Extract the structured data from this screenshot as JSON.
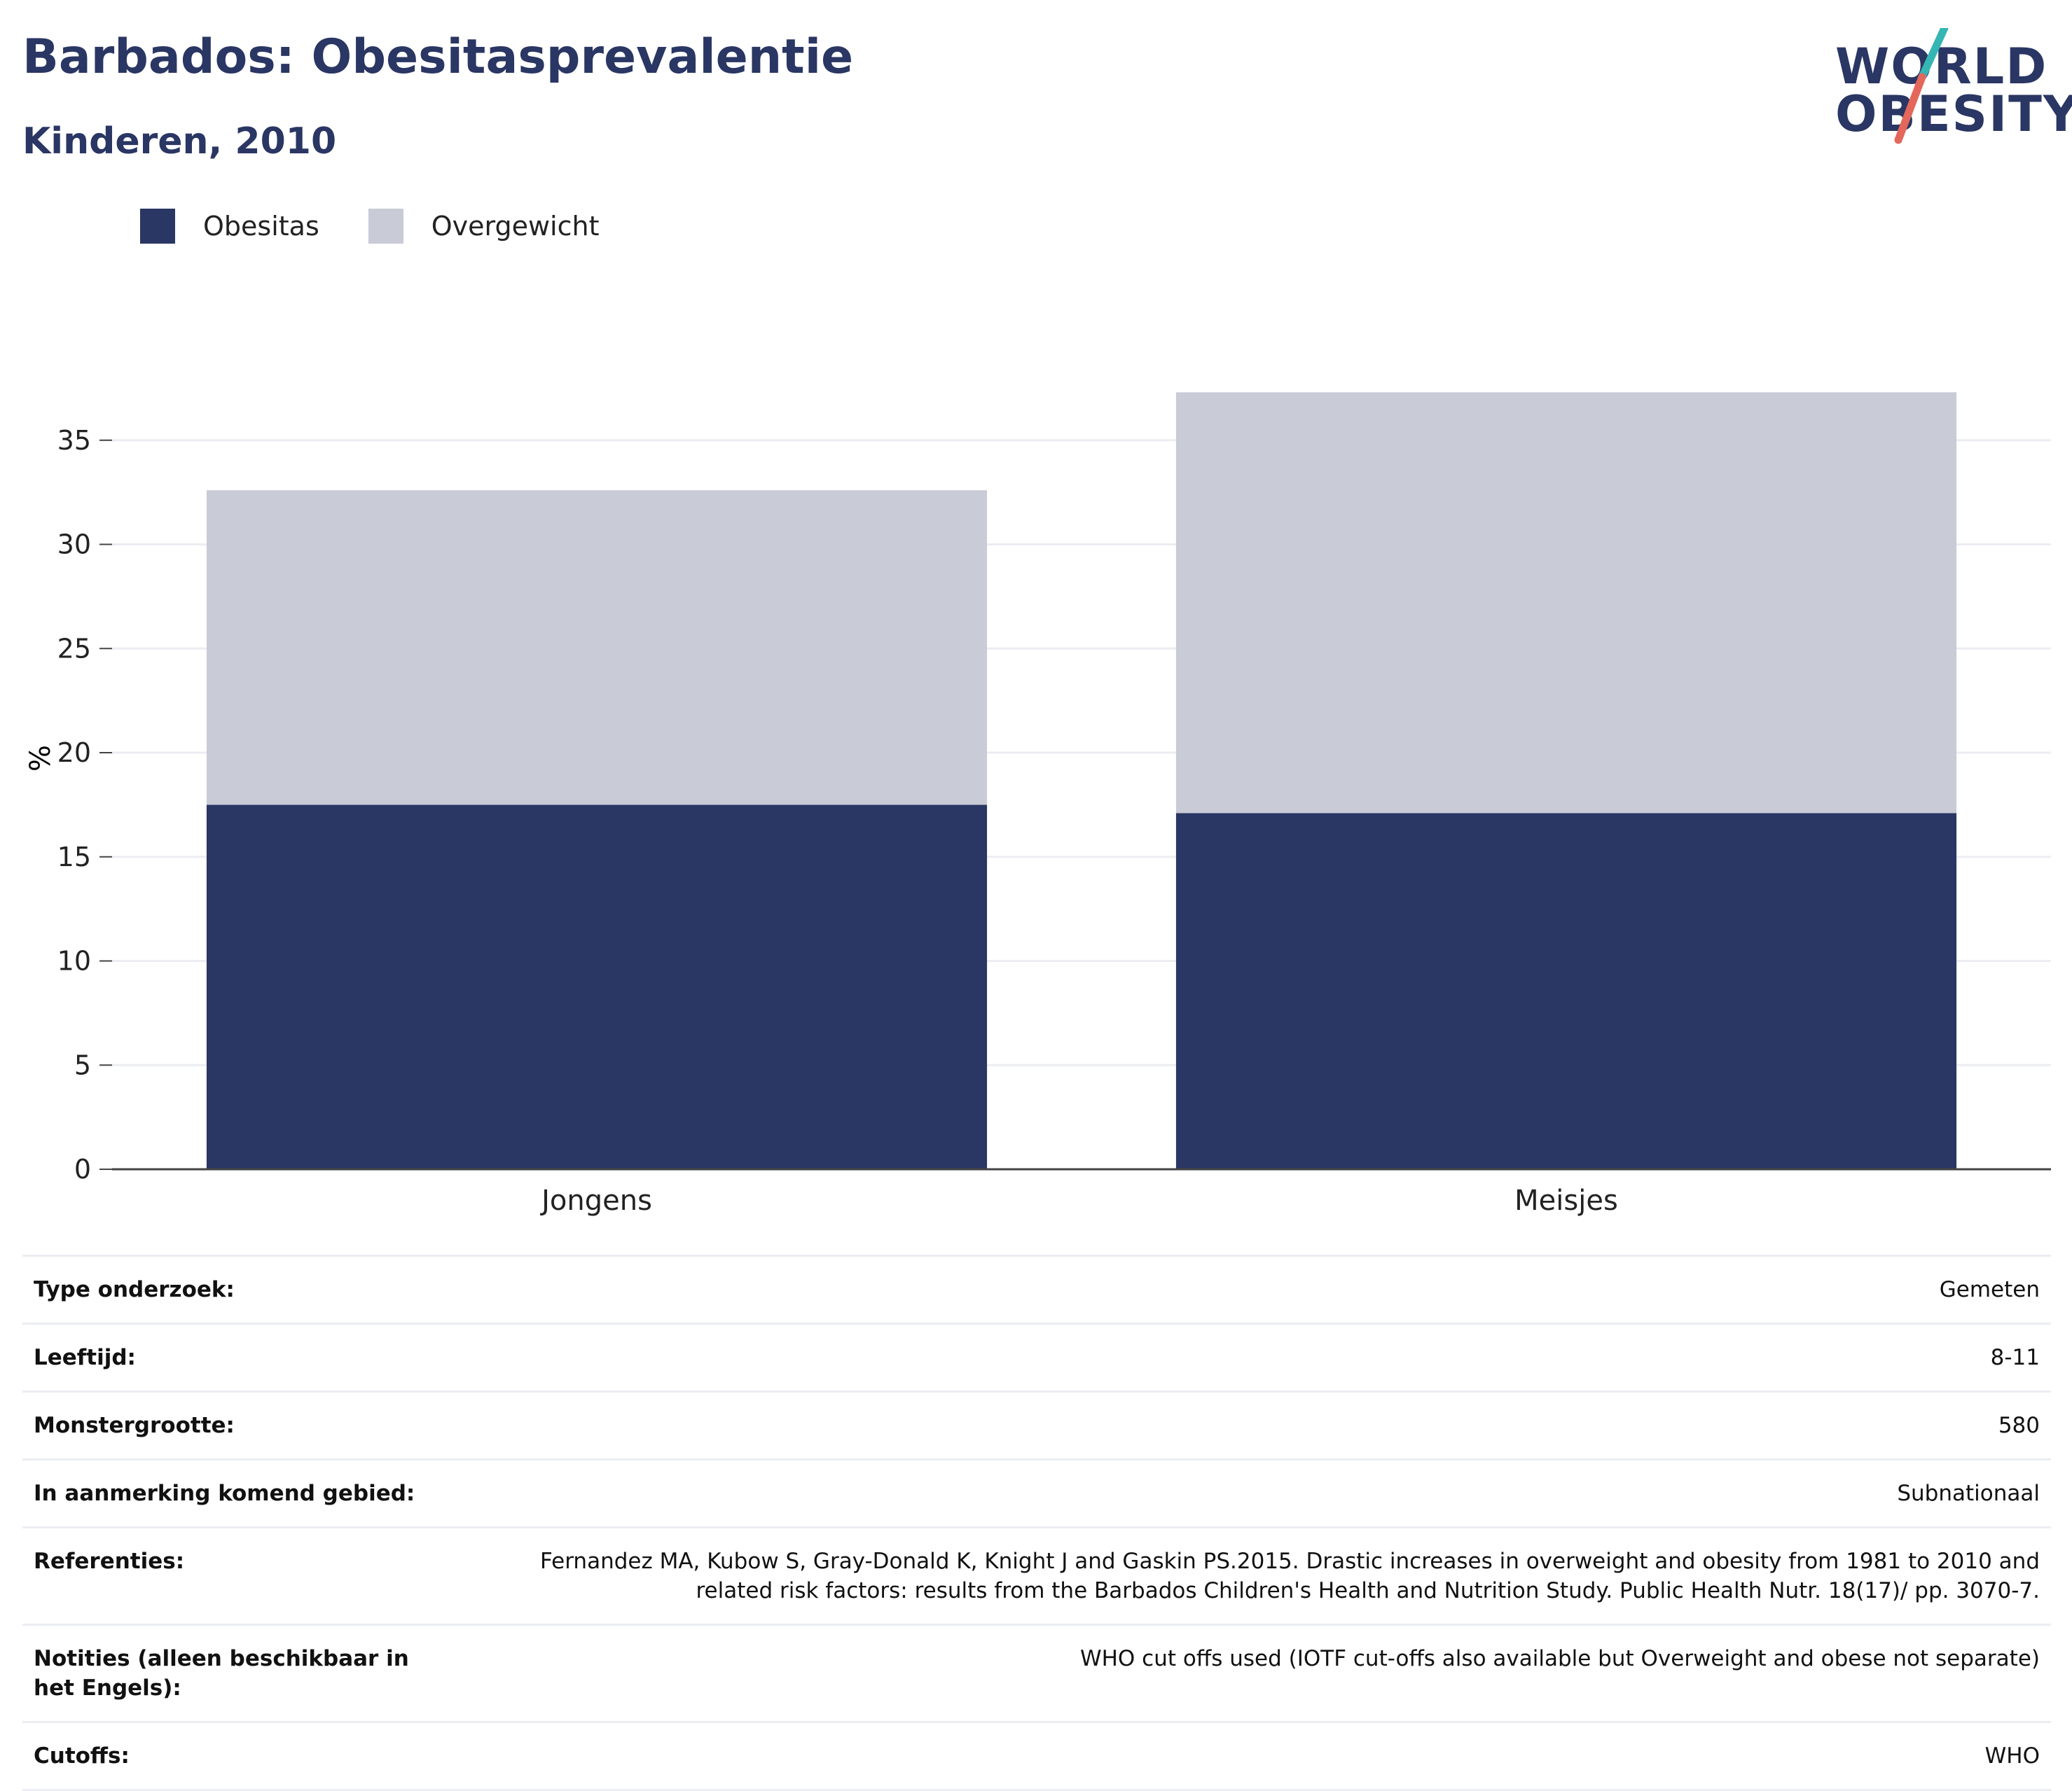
{
  "header": {
    "title": "Barbados: Obesitasprevalentie",
    "subtitle": "Kinderen, 2010"
  },
  "logo": {
    "line1": "WORLD",
    "line2": "OBESITY"
  },
  "colors": {
    "obesity": "#2a3663",
    "overweight": "#c9cbd6",
    "gridline": "#ebedf2",
    "axis": "#444444"
  },
  "chart_data": {
    "type": "bar",
    "stacked": true,
    "categories": [
      "Jongens",
      "Meisjes"
    ],
    "series": [
      {
        "name": "Obesitas",
        "values": [
          17.5,
          17.1
        ]
      },
      {
        "name": "Overgewicht",
        "values": [
          15.1,
          20.2
        ]
      }
    ],
    "ylabel": "%",
    "yticks": [
      "0",
      "5",
      "10",
      "15",
      "20",
      "25",
      "30",
      "35"
    ],
    "ylim": [
      0,
      38.5
    ],
    "grid": true,
    "legend_position": "top-left"
  },
  "info": [
    {
      "key": "Type onderzoek:",
      "value": "Gemeten"
    },
    {
      "key": "Leeftijd:",
      "value": "8-11"
    },
    {
      "key": "Monstergrootte:",
      "value": "580"
    },
    {
      "key": "In aanmerking komend gebied:",
      "value": "Subnationaal"
    },
    {
      "key": "Referenties:",
      "value": "Fernandez MA, Kubow S, Gray-Donald K, Knight J and Gaskin PS.2015. Drastic increases in overweight and obesity from 1981 to 2010 and related risk factors: results from the Barbados Children's Health and Nutrition Study. Public Health Nutr. 18(17)/ pp. 3070-7."
    },
    {
      "key": "Notities (alleen beschikbaar in het Engels):",
      "value": "WHO cut offs used (IOTF cut-offs also available but Overweight and obese not separate)"
    },
    {
      "key": "Cutoffs:",
      "value": "WHO"
    }
  ]
}
